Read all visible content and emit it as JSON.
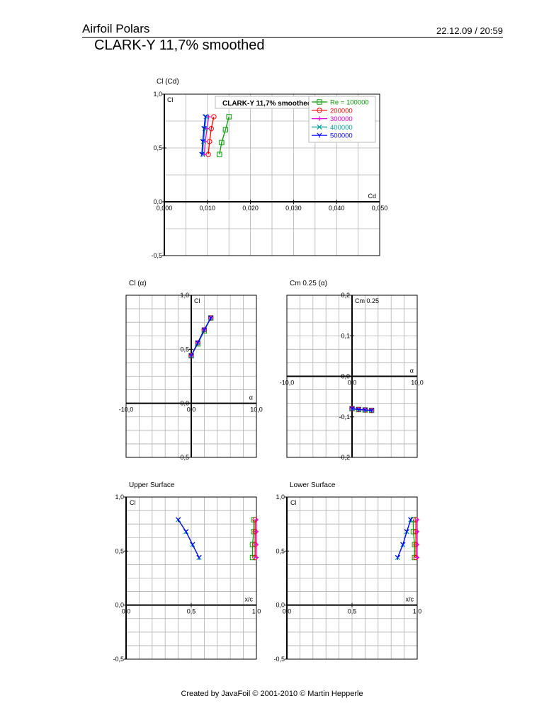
{
  "header": {
    "title": "Airfoil Polars",
    "datetime": "22.12.09 / 20:59",
    "subtitle": "CLARK-Y 11,7% smoothed"
  },
  "footer": {
    "text": "Created by JavaFoil © 2001-2010 © Martin Hepperle"
  },
  "colors": {
    "series": [
      "#00a000",
      "#ff0000",
      "#e000e0",
      "#00a0a0",
      "#0000ff"
    ],
    "grid": "#b0b0b0"
  },
  "chart_data": [
    {
      "id": "cl_cd",
      "type": "line",
      "title": "Cl (Cd)",
      "xlabel": "Cd",
      "ylabel": "Cl",
      "xlim": [
        0.0,
        0.05
      ],
      "ylim": [
        -0.5,
        1.0
      ],
      "xticks": [
        0.0,
        0.01,
        0.02,
        0.03,
        0.04,
        0.05
      ],
      "xtick_labels": [
        "0,000",
        "0,010",
        "0,020",
        "0,030",
        "0,040",
        "0,050"
      ],
      "yticks": [
        -0.5,
        0.0,
        0.5,
        1.0
      ],
      "ytick_labels": [
        "-0,5",
        "0,0",
        "0,5",
        "1,0"
      ],
      "grid": true,
      "legend": {
        "placement": "top-right",
        "title": "CLARK-Y 11,7% smoothed",
        "entries": [
          "Re = 100000",
          "200000",
          "300000",
          "400000",
          "500000"
        ]
      },
      "series": [
        {
          "name": "Re = 100000",
          "x": [
            0.0128,
            0.0133,
            0.0142,
            0.015
          ],
          "y": [
            0.44,
            0.55,
            0.67,
            0.79
          ]
        },
        {
          "name": "200000",
          "x": [
            0.0102,
            0.0105,
            0.0109,
            0.0115
          ],
          "y": [
            0.44,
            0.56,
            0.68,
            0.79
          ]
        },
        {
          "name": "300000",
          "x": [
            0.0093,
            0.0095,
            0.0099,
            0.0103
          ],
          "y": [
            0.44,
            0.56,
            0.68,
            0.79
          ]
        },
        {
          "name": "400000",
          "x": [
            0.0089,
            0.0091,
            0.0094,
            0.0097
          ],
          "y": [
            0.44,
            0.56,
            0.68,
            0.79
          ]
        },
        {
          "name": "500000",
          "x": [
            0.0087,
            0.0089,
            0.0092,
            0.0095
          ],
          "y": [
            0.44,
            0.56,
            0.68,
            0.79
          ]
        }
      ]
    },
    {
      "id": "cl_alpha",
      "type": "line",
      "title": "Cl (α)",
      "xlabel": "α",
      "ylabel": "Cl",
      "xlim": [
        -10.0,
        10.0
      ],
      "ylim": [
        -0.5,
        1.0
      ],
      "xticks": [
        -10.0,
        0.0,
        10.0
      ],
      "xtick_labels": [
        "-10,0",
        "0,0",
        "10,0"
      ],
      "yticks": [
        -0.5,
        0.0,
        0.5,
        1.0
      ],
      "ytick_labels": [
        "-0,5",
        "0,0",
        "0,5",
        "1,0"
      ],
      "grid": true,
      "series": [
        {
          "name": "Re = 100000",
          "x": [
            0.0,
            1.0,
            2.0,
            3.0
          ],
          "y": [
            0.44,
            0.55,
            0.67,
            0.79
          ]
        },
        {
          "name": "200000",
          "x": [
            0.0,
            1.0,
            2.0,
            3.0
          ],
          "y": [
            0.44,
            0.56,
            0.68,
            0.79
          ]
        },
        {
          "name": "300000",
          "x": [
            0.0,
            1.0,
            2.0,
            3.0
          ],
          "y": [
            0.44,
            0.56,
            0.68,
            0.79
          ]
        },
        {
          "name": "400000",
          "x": [
            0.0,
            1.0,
            2.0,
            3.0
          ],
          "y": [
            0.44,
            0.56,
            0.68,
            0.79
          ]
        },
        {
          "name": "500000",
          "x": [
            0.0,
            1.0,
            2.0,
            3.0
          ],
          "y": [
            0.44,
            0.56,
            0.68,
            0.79
          ]
        }
      ]
    },
    {
      "id": "cm_alpha",
      "type": "line",
      "title": "Cm 0.25 (α)",
      "xlabel": "α",
      "ylabel": "Cm 0.25",
      "xlim": [
        -10.0,
        10.0
      ],
      "ylim": [
        -0.2,
        0.2
      ],
      "xticks": [
        -10.0,
        0.0,
        10.0
      ],
      "xtick_labels": [
        "-10,0",
        "0,0",
        "10,0"
      ],
      "yticks": [
        -0.2,
        -0.1,
        0.0,
        0.1,
        0.2
      ],
      "ytick_labels": [
        "-0,2",
        "-0,1",
        "0,0",
        "0,1",
        "0,2"
      ],
      "grid": true,
      "series": [
        {
          "name": "Re = 100000",
          "x": [
            0.0,
            1.0,
            2.0,
            3.0
          ],
          "y": [
            -0.08,
            -0.082,
            -0.083,
            -0.084
          ]
        },
        {
          "name": "200000",
          "x": [
            0.0,
            1.0,
            2.0,
            3.0
          ],
          "y": [
            -0.08,
            -0.082,
            -0.083,
            -0.084
          ]
        },
        {
          "name": "300000",
          "x": [
            0.0,
            1.0,
            2.0,
            3.0
          ],
          "y": [
            -0.08,
            -0.082,
            -0.083,
            -0.084
          ]
        },
        {
          "name": "400000",
          "x": [
            0.0,
            1.0,
            2.0,
            3.0
          ],
          "y": [
            -0.08,
            -0.082,
            -0.083,
            -0.084
          ]
        },
        {
          "name": "500000",
          "x": [
            0.0,
            1.0,
            2.0,
            3.0
          ],
          "y": [
            -0.08,
            -0.082,
            -0.083,
            -0.084
          ]
        }
      ]
    },
    {
      "id": "upper_surface",
      "type": "line",
      "title": "Upper Surface",
      "xlabel": "x/c",
      "ylabel": "Cl",
      "xlim": [
        0.0,
        1.0
      ],
      "ylim": [
        -0.5,
        1.0
      ],
      "xticks": [
        0.0,
        0.5,
        1.0
      ],
      "xtick_labels": [
        "0,0",
        "0,5",
        "1,0"
      ],
      "yticks": [
        -0.5,
        0.0,
        0.5,
        1.0
      ],
      "ytick_labels": [
        "-0,5",
        "0,0",
        "0,5",
        "1,0"
      ],
      "grid": true,
      "series": [
        {
          "name": "Re = 100000",
          "x": [
            0.97,
            0.97,
            0.98,
            0.98
          ],
          "y": [
            0.44,
            0.56,
            0.68,
            0.79
          ]
        },
        {
          "name": "200000",
          "x": [
            0.99,
            0.99,
            0.99,
            0.99
          ],
          "y": [
            0.44,
            0.56,
            0.68,
            0.79
          ]
        },
        {
          "name": "300000",
          "x": [
            1.0,
            1.0,
            1.0,
            1.0
          ],
          "y": [
            0.44,
            0.56,
            0.68,
            0.79
          ]
        },
        {
          "name": "400000",
          "x": [
            0.56,
            0.51,
            0.46,
            0.4
          ],
          "y": [
            0.44,
            0.56,
            0.68,
            0.79
          ]
        },
        {
          "name": "500000",
          "x": [
            0.56,
            0.51,
            0.46,
            0.4
          ],
          "y": [
            0.44,
            0.56,
            0.68,
            0.79
          ]
        }
      ]
    },
    {
      "id": "lower_surface",
      "type": "line",
      "title": "Lower Surface",
      "xlabel": "x/c",
      "ylabel": "Cl",
      "xlim": [
        0.0,
        1.0
      ],
      "ylim": [
        -0.5,
        1.0
      ],
      "xticks": [
        0.0,
        0.5,
        1.0
      ],
      "xtick_labels": [
        "0,0",
        "0,5",
        "1,0"
      ],
      "yticks": [
        -0.5,
        0.0,
        0.5,
        1.0
      ],
      "ytick_labels": [
        "-0,5",
        "0,0",
        "0,5",
        "1,0"
      ],
      "grid": true,
      "series": [
        {
          "name": "Re = 100000",
          "x": [
            0.98,
            0.98,
            0.97,
            0.97
          ],
          "y": [
            0.44,
            0.56,
            0.68,
            0.79
          ]
        },
        {
          "name": "200000",
          "x": [
            0.99,
            0.99,
            0.99,
            0.99
          ],
          "y": [
            0.44,
            0.56,
            0.68,
            0.79
          ]
        },
        {
          "name": "300000",
          "x": [
            1.0,
            1.0,
            1.0,
            1.0
          ],
          "y": [
            0.44,
            0.56,
            0.68,
            0.79
          ]
        },
        {
          "name": "400000",
          "x": [
            0.85,
            0.89,
            0.92,
            0.95
          ],
          "y": [
            0.44,
            0.56,
            0.68,
            0.79
          ]
        },
        {
          "name": "500000",
          "x": [
            0.85,
            0.89,
            0.92,
            0.95
          ],
          "y": [
            0.44,
            0.56,
            0.68,
            0.79
          ]
        }
      ]
    }
  ]
}
